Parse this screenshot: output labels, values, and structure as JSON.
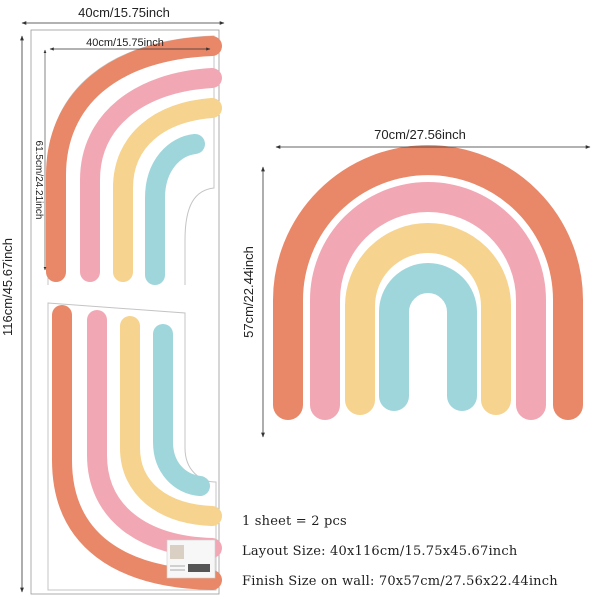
{
  "left_panel": {
    "width_label": "40cm/15.75inch",
    "inner_width_label": "40cm/15.75inch",
    "height_label": "116cm/45.67inch",
    "piece_height_label": "61.5cm/24.21inch"
  },
  "right_panel": {
    "width_label": "70cm/27.56inch",
    "height_label": "57cm/22.44inch"
  },
  "info": {
    "pieces": "1 sheet = 2 pcs",
    "layout": "Layout Size: 40x116cm/15.75x45.67inch",
    "finish": "Finish Size on wall: 70x57cm/27.56x22.44inch"
  },
  "colors": {
    "orange": "#e88868",
    "pink": "#f1a8b4",
    "yellow": "#f6d38e",
    "blue": "#9fd6dc",
    "outline": "#bdbdbd"
  }
}
